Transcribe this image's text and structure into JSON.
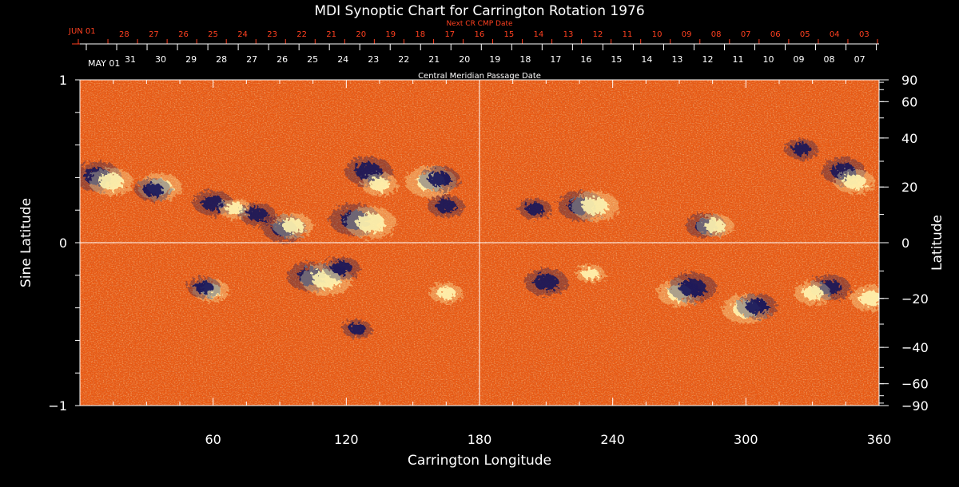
{
  "chart_data": {
    "type": "heatmap",
    "title": "MDI Synoptic Chart for Carrington Rotation 1976",
    "xlabel": "Carrington Longitude",
    "ylabel_left": "Sine Latitude",
    "ylabel_right": "Latitude",
    "xlim": [
      0,
      360
    ],
    "ylim": [
      -1,
      1
    ],
    "x_ticks": [
      60,
      120,
      180,
      240,
      300,
      360
    ],
    "y_left_ticks": [
      {
        "v": 1,
        "label": "1"
      },
      {
        "v": 0,
        "label": "0"
      },
      {
        "v": -1,
        "label": "−1"
      }
    ],
    "y_right_ticks": [
      {
        "lat": 90,
        "label": "90"
      },
      {
        "lat": 60,
        "label": "60"
      },
      {
        "lat": 40,
        "label": "40"
      },
      {
        "lat": 20,
        "label": "20"
      },
      {
        "lat": 0,
        "label": "0"
      },
      {
        "lat": -20,
        "label": "−20"
      },
      {
        "lat": -40,
        "label": "−40"
      },
      {
        "lat": -60,
        "label": "−60"
      },
      {
        "lat": -90,
        "label": "−90"
      }
    ],
    "grid": "crosshair at longitude 180 and latitude 0",
    "colors": {
      "background": "#e85a14",
      "positive": "#fff5b0",
      "negative": "#14145a",
      "frame": "#ffffff",
      "axis_red": "#ff4020"
    },
    "top_axis": {
      "label": "Central Meridian Passage Date",
      "start_label": "MAY 01",
      "dates": [
        "31",
        "30",
        "29",
        "28",
        "27",
        "26",
        "25",
        "24",
        "23",
        "22",
        "21",
        "20",
        "19",
        "18",
        "17",
        "16",
        "15",
        "14",
        "13",
        "12",
        "11",
        "10",
        "09",
        "08",
        "07"
      ]
    },
    "next_cr_axis": {
      "label": "Next CR CMP Date",
      "start_label": "JUN 01",
      "dates": [
        "28",
        "27",
        "26",
        "25",
        "24",
        "23",
        "22",
        "21",
        "20",
        "19",
        "18",
        "17",
        "16",
        "15",
        "14",
        "13",
        "12",
        "11",
        "10",
        "09",
        "08",
        "07",
        "06",
        "05",
        "04",
        "03"
      ]
    },
    "active_regions": [
      {
        "lon": 8,
        "lat": 24,
        "polarity": "negative",
        "strength": 0.9
      },
      {
        "lon": 14,
        "lat": 22,
        "polarity": "positive",
        "strength": 0.8
      },
      {
        "lon": 36,
        "lat": 20,
        "polarity": "positive",
        "strength": 0.8
      },
      {
        "lon": 33,
        "lat": 19,
        "polarity": "negative",
        "strength": 0.6
      },
      {
        "lon": 60,
        "lat": 14,
        "polarity": "negative",
        "strength": 0.7
      },
      {
        "lon": 70,
        "lat": 12,
        "polarity": "positive",
        "strength": 0.5
      },
      {
        "lon": 80,
        "lat": 10,
        "polarity": "negative",
        "strength": 0.6
      },
      {
        "lon": 92,
        "lat": 5,
        "polarity": "negative",
        "strength": 0.8
      },
      {
        "lon": 96,
        "lat": 6,
        "polarity": "positive",
        "strength": 0.7
      },
      {
        "lon": 124,
        "lat": 8,
        "polarity": "negative",
        "strength": 1.0
      },
      {
        "lon": 131,
        "lat": 7,
        "polarity": "positive",
        "strength": 1.0
      },
      {
        "lon": 130,
        "lat": 26,
        "polarity": "negative",
        "strength": 0.9
      },
      {
        "lon": 135,
        "lat": 21,
        "polarity": "positive",
        "strength": 0.6
      },
      {
        "lon": 158,
        "lat": 22,
        "polarity": "positive",
        "strength": 1.0
      },
      {
        "lon": 162,
        "lat": 23,
        "polarity": "negative",
        "strength": 0.7
      },
      {
        "lon": 165,
        "lat": 13,
        "polarity": "negative",
        "strength": 0.6
      },
      {
        "lon": 226,
        "lat": 13,
        "polarity": "negative",
        "strength": 0.9
      },
      {
        "lon": 232,
        "lat": 13,
        "polarity": "positive",
        "strength": 0.9
      },
      {
        "lon": 205,
        "lat": 12,
        "polarity": "negative",
        "strength": 0.5
      },
      {
        "lon": 282,
        "lat": 6,
        "polarity": "negative",
        "strength": 0.7
      },
      {
        "lon": 286,
        "lat": 6,
        "polarity": "positive",
        "strength": 0.6
      },
      {
        "lon": 325,
        "lat": 35,
        "polarity": "negative",
        "strength": 0.5
      },
      {
        "lon": 344,
        "lat": 26,
        "polarity": "negative",
        "strength": 0.8
      },
      {
        "lon": 349,
        "lat": 22,
        "polarity": "positive",
        "strength": 0.7
      },
      {
        "lon": 104,
        "lat": -12,
        "polarity": "negative",
        "strength": 0.9
      },
      {
        "lon": 111,
        "lat": -13,
        "polarity": "positive",
        "strength": 1.0
      },
      {
        "lon": 118,
        "lat": -9,
        "polarity": "negative",
        "strength": 0.6
      },
      {
        "lon": 59,
        "lat": -17,
        "polarity": "positive",
        "strength": 0.6
      },
      {
        "lon": 56,
        "lat": -16,
        "polarity": "negative",
        "strength": 0.5
      },
      {
        "lon": 210,
        "lat": -14,
        "polarity": "negative",
        "strength": 0.8
      },
      {
        "lon": 230,
        "lat": -11,
        "polarity": "positive",
        "strength": 0.4
      },
      {
        "lon": 270,
        "lat": -18,
        "polarity": "positive",
        "strength": 0.8
      },
      {
        "lon": 276,
        "lat": -16,
        "polarity": "negative",
        "strength": 0.9
      },
      {
        "lon": 300,
        "lat": -24,
        "polarity": "positive",
        "strength": 0.9
      },
      {
        "lon": 305,
        "lat": -23,
        "polarity": "negative",
        "strength": 0.7
      },
      {
        "lon": 338,
        "lat": -16,
        "polarity": "negative",
        "strength": 0.7
      },
      {
        "lon": 330,
        "lat": -18,
        "polarity": "positive",
        "strength": 0.6
      },
      {
        "lon": 356,
        "lat": -20,
        "polarity": "positive",
        "strength": 0.7
      },
      {
        "lon": 165,
        "lat": -18,
        "polarity": "positive",
        "strength": 0.5
      },
      {
        "lon": 125,
        "lat": -32,
        "polarity": "negative",
        "strength": 0.4
      }
    ]
  }
}
